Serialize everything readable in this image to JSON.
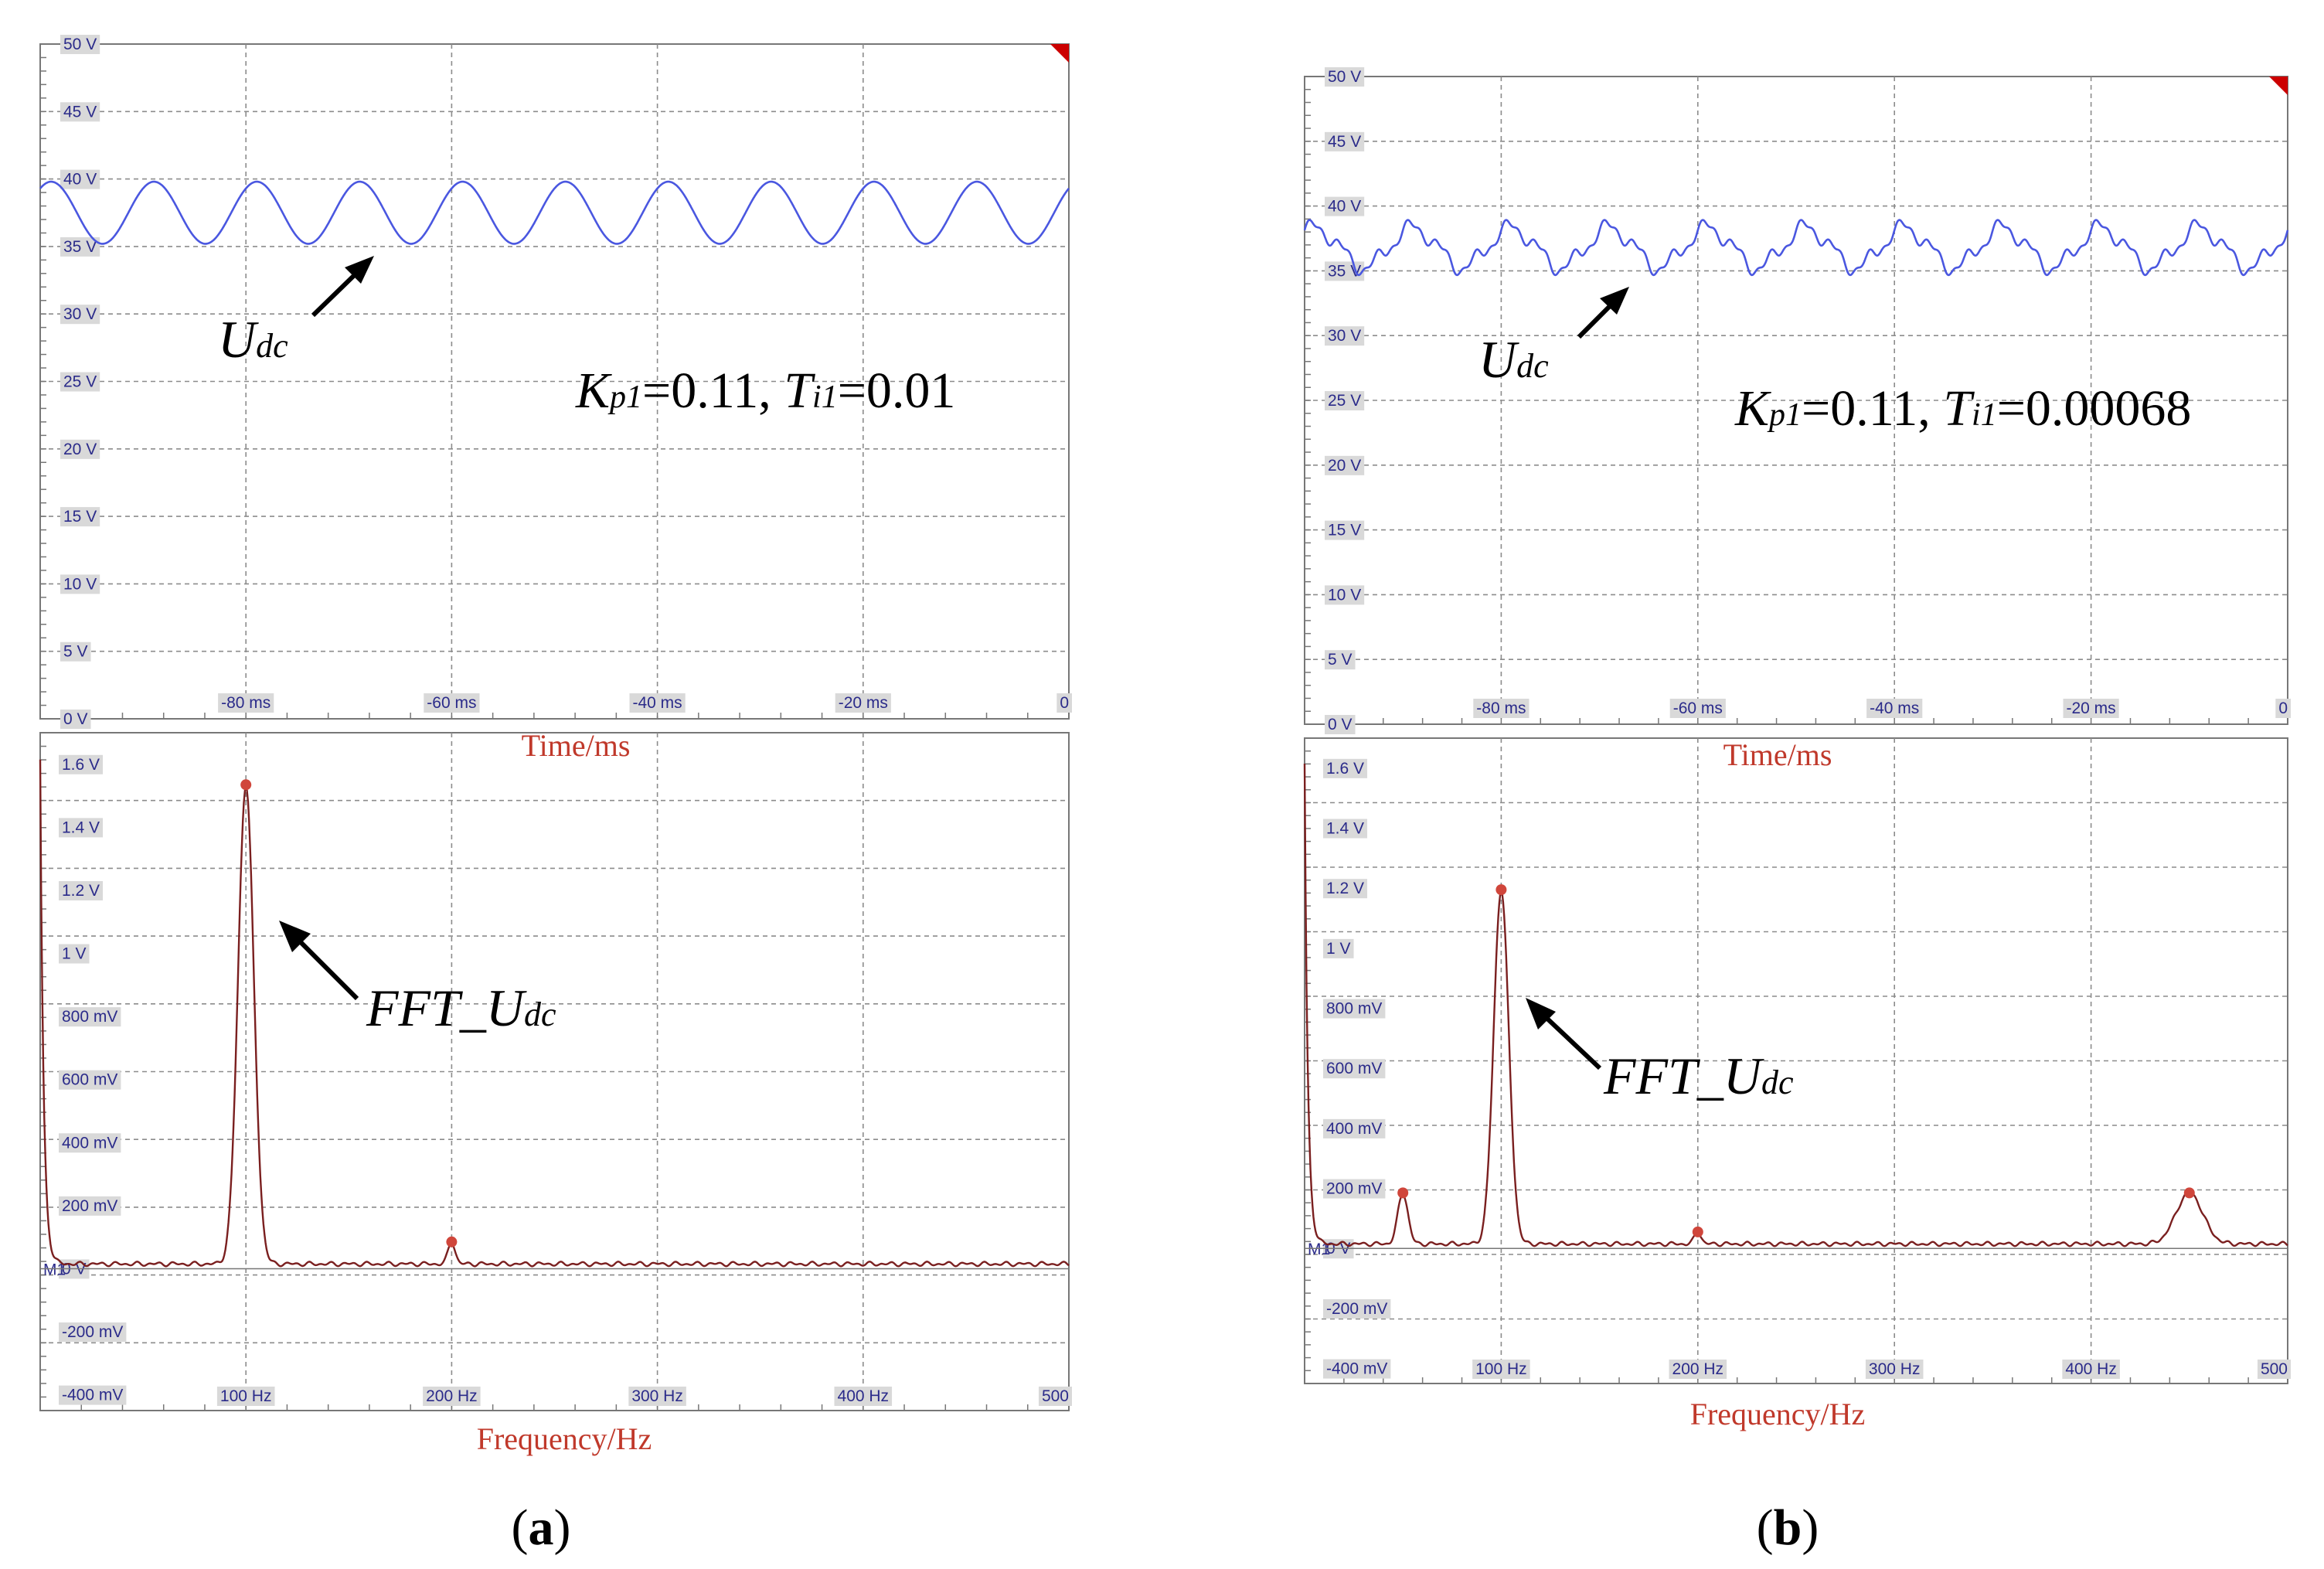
{
  "colors": {
    "time_trace": "#4a57e0",
    "fft_trace": "#7a1f1f",
    "peak_marker": "#d0463b",
    "grid": "#8c8c8c",
    "frame": "#777777",
    "axis_caption": "#c0392b",
    "tick_text": "#2b2b8a",
    "tick_bg": "#d9d9d9",
    "red_corner": "#cc0000"
  },
  "chart_data": [
    {
      "panel": "a-time",
      "type": "line",
      "title": "",
      "xlabel": "Time/ms",
      "ylabel": "",
      "xlim": [
        -100,
        0
      ],
      "ylim": [
        0,
        50
      ],
      "x_ticks": [
        "-80 ms",
        "-60 ms",
        "-40 ms",
        "-20 ms",
        "0"
      ],
      "y_ticks": [
        "50 V",
        "45 V",
        "40 V",
        "35 V",
        "30 V",
        "25 V",
        "20 V",
        "15 V",
        "10 V",
        "5 V",
        "0 V"
      ],
      "series": [
        {
          "name": "Udc",
          "mean": 37.5,
          "amplitude": 2.3,
          "frequency_hz": 100,
          "ripple_amplitude": 0
        }
      ],
      "annotation": "Udc",
      "params_text": "Kp1=0.11, Ti1=0.01"
    },
    {
      "panel": "a-fft",
      "type": "line",
      "title": "",
      "xlabel": "Frequency/Hz",
      "ylabel": "",
      "xlim": [
        0,
        500
      ],
      "ylim": [
        -0.45,
        1.7
      ],
      "x_ticks": [
        "100 Hz",
        "200 Hz",
        "300 Hz",
        "400 Hz",
        "500"
      ],
      "y_ticks": [
        "1.6 V",
        "1.4 V",
        "1.2 V",
        "1 V",
        "800 mV",
        "600 mV",
        "400 mV",
        "200 mV",
        "0 V",
        "-200 mV",
        "-400 mV"
      ],
      "baseline_label": "M1",
      "peaks": [
        {
          "x": 100,
          "y": 1.52,
          "width": 9
        },
        {
          "x": 200,
          "y": 0.07,
          "width": 4
        }
      ],
      "noise_floor": 0.015,
      "initial_dc": 1.6,
      "annotation": "FFT_Udc"
    },
    {
      "panel": "b-time",
      "type": "line",
      "title": "",
      "xlabel": "Time/ms",
      "ylabel": "",
      "xlim": [
        -100,
        0
      ],
      "ylim": [
        0,
        50
      ],
      "x_ticks": [
        "-80 ms",
        "-60 ms",
        "-40 ms",
        "-20 ms",
        "0"
      ],
      "y_ticks": [
        "50 V",
        "45 V",
        "40 V",
        "35 V",
        "30 V",
        "25 V",
        "20 V",
        "15 V",
        "10 V",
        "5 V",
        "0 V"
      ],
      "series": [
        {
          "name": "Udc",
          "mean": 36.8,
          "amplitude": 1.5,
          "frequency_hz": 100,
          "ripple_amplitude": 0.55
        }
      ],
      "annotation": "Udc",
      "params_text": "Kp1=0.11, Ti1=0.00068"
    },
    {
      "panel": "b-fft",
      "type": "line",
      "title": "",
      "xlabel": "Frequency/Hz",
      "ylabel": "",
      "xlim": [
        0,
        500
      ],
      "ylim": [
        -0.45,
        1.7
      ],
      "x_ticks": [
        "100 Hz",
        "200 Hz",
        "300 Hz",
        "400 Hz",
        "500"
      ],
      "y_ticks": [
        "1.6 V",
        "1.4 V",
        "1.2 V",
        "1 V",
        "800 mV",
        "600 mV",
        "400 mV",
        "200 mV",
        "0 V",
        "-200 mV",
        "-400 mV"
      ],
      "baseline_label": "M1",
      "peaks": [
        {
          "x": 50,
          "y": 0.17,
          "width": 6
        },
        {
          "x": 100,
          "y": 1.18,
          "width": 9
        },
        {
          "x": 200,
          "y": 0.04,
          "width": 4
        },
        {
          "x": 450,
          "y": 0.17,
          "width": 16
        }
      ],
      "noise_floor": 0.015,
      "initial_dc": 1.6,
      "annotation": "FFT_Udc"
    }
  ],
  "panel_labels": {
    "a": "a",
    "b": "b"
  },
  "annotations": {
    "udc_main": "U",
    "udc_sub": "dc",
    "fft_main": "FFT_U",
    "fft_sub": "dc"
  },
  "params": {
    "a": {
      "k": "K",
      "k_sub": "p1",
      "k_val": "=0.11, ",
      "t": "T",
      "t_sub": "i1",
      "t_val": "=0.01"
    },
    "b": {
      "k": "K",
      "k_sub": "p1",
      "k_val": "=0.11, ",
      "t": "T",
      "t_sub": "i1",
      "t_val": "=0.00068"
    }
  }
}
